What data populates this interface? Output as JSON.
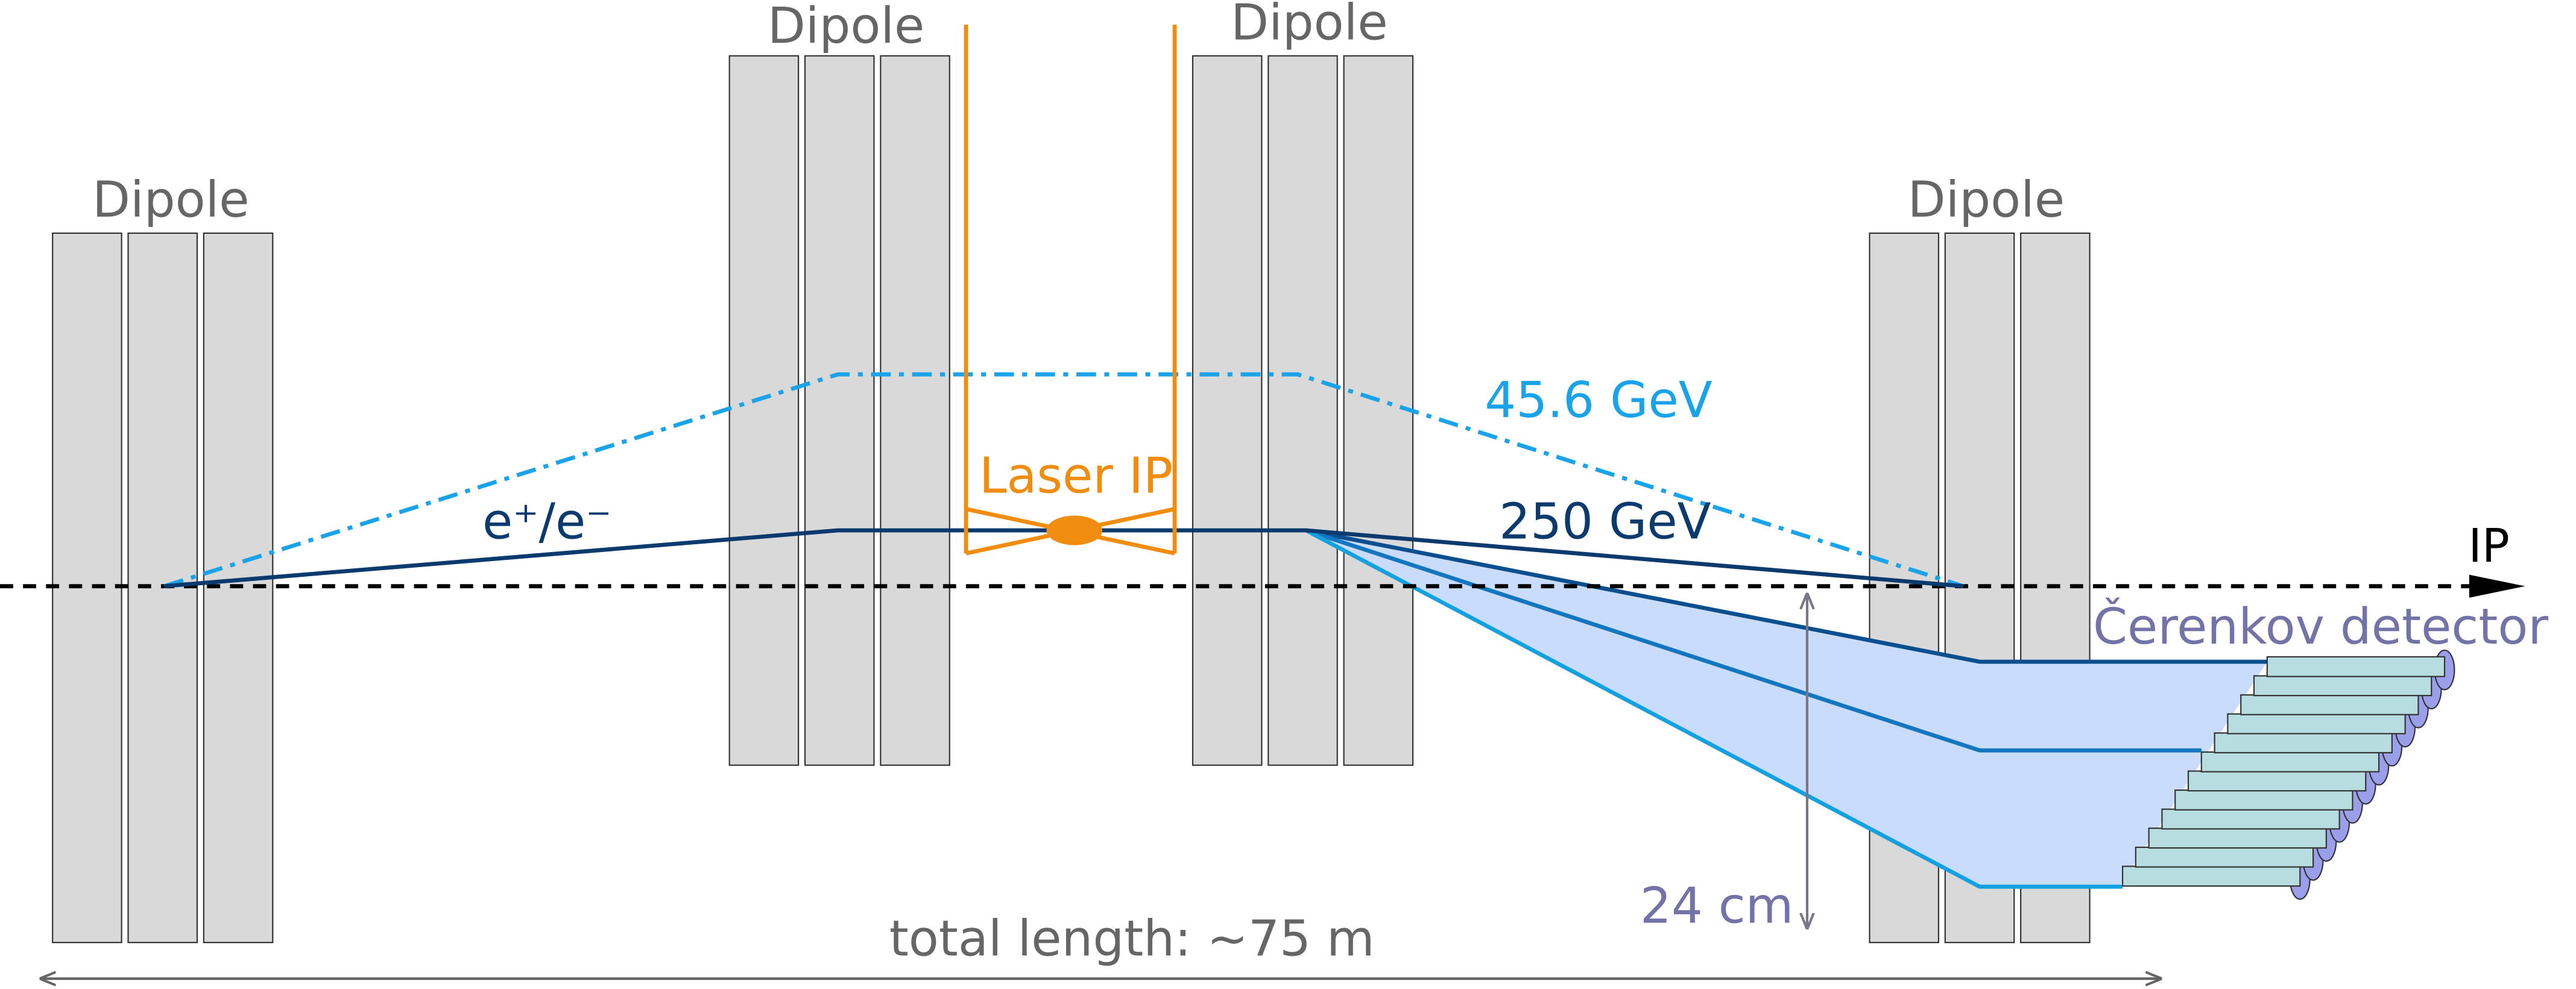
{
  "labels": {
    "dipoles": [
      "Dipole",
      "Dipole",
      "Dipole",
      "Dipole"
    ],
    "laser_ip": "Laser IP",
    "beam": "e⁺/e⁻",
    "energy_high": "45.6 GeV",
    "energy_low": "250 GeV",
    "ip": "IP",
    "detector": "Čerenkov detector",
    "height": "24 cm",
    "length": "total length: ~75 m"
  }
}
